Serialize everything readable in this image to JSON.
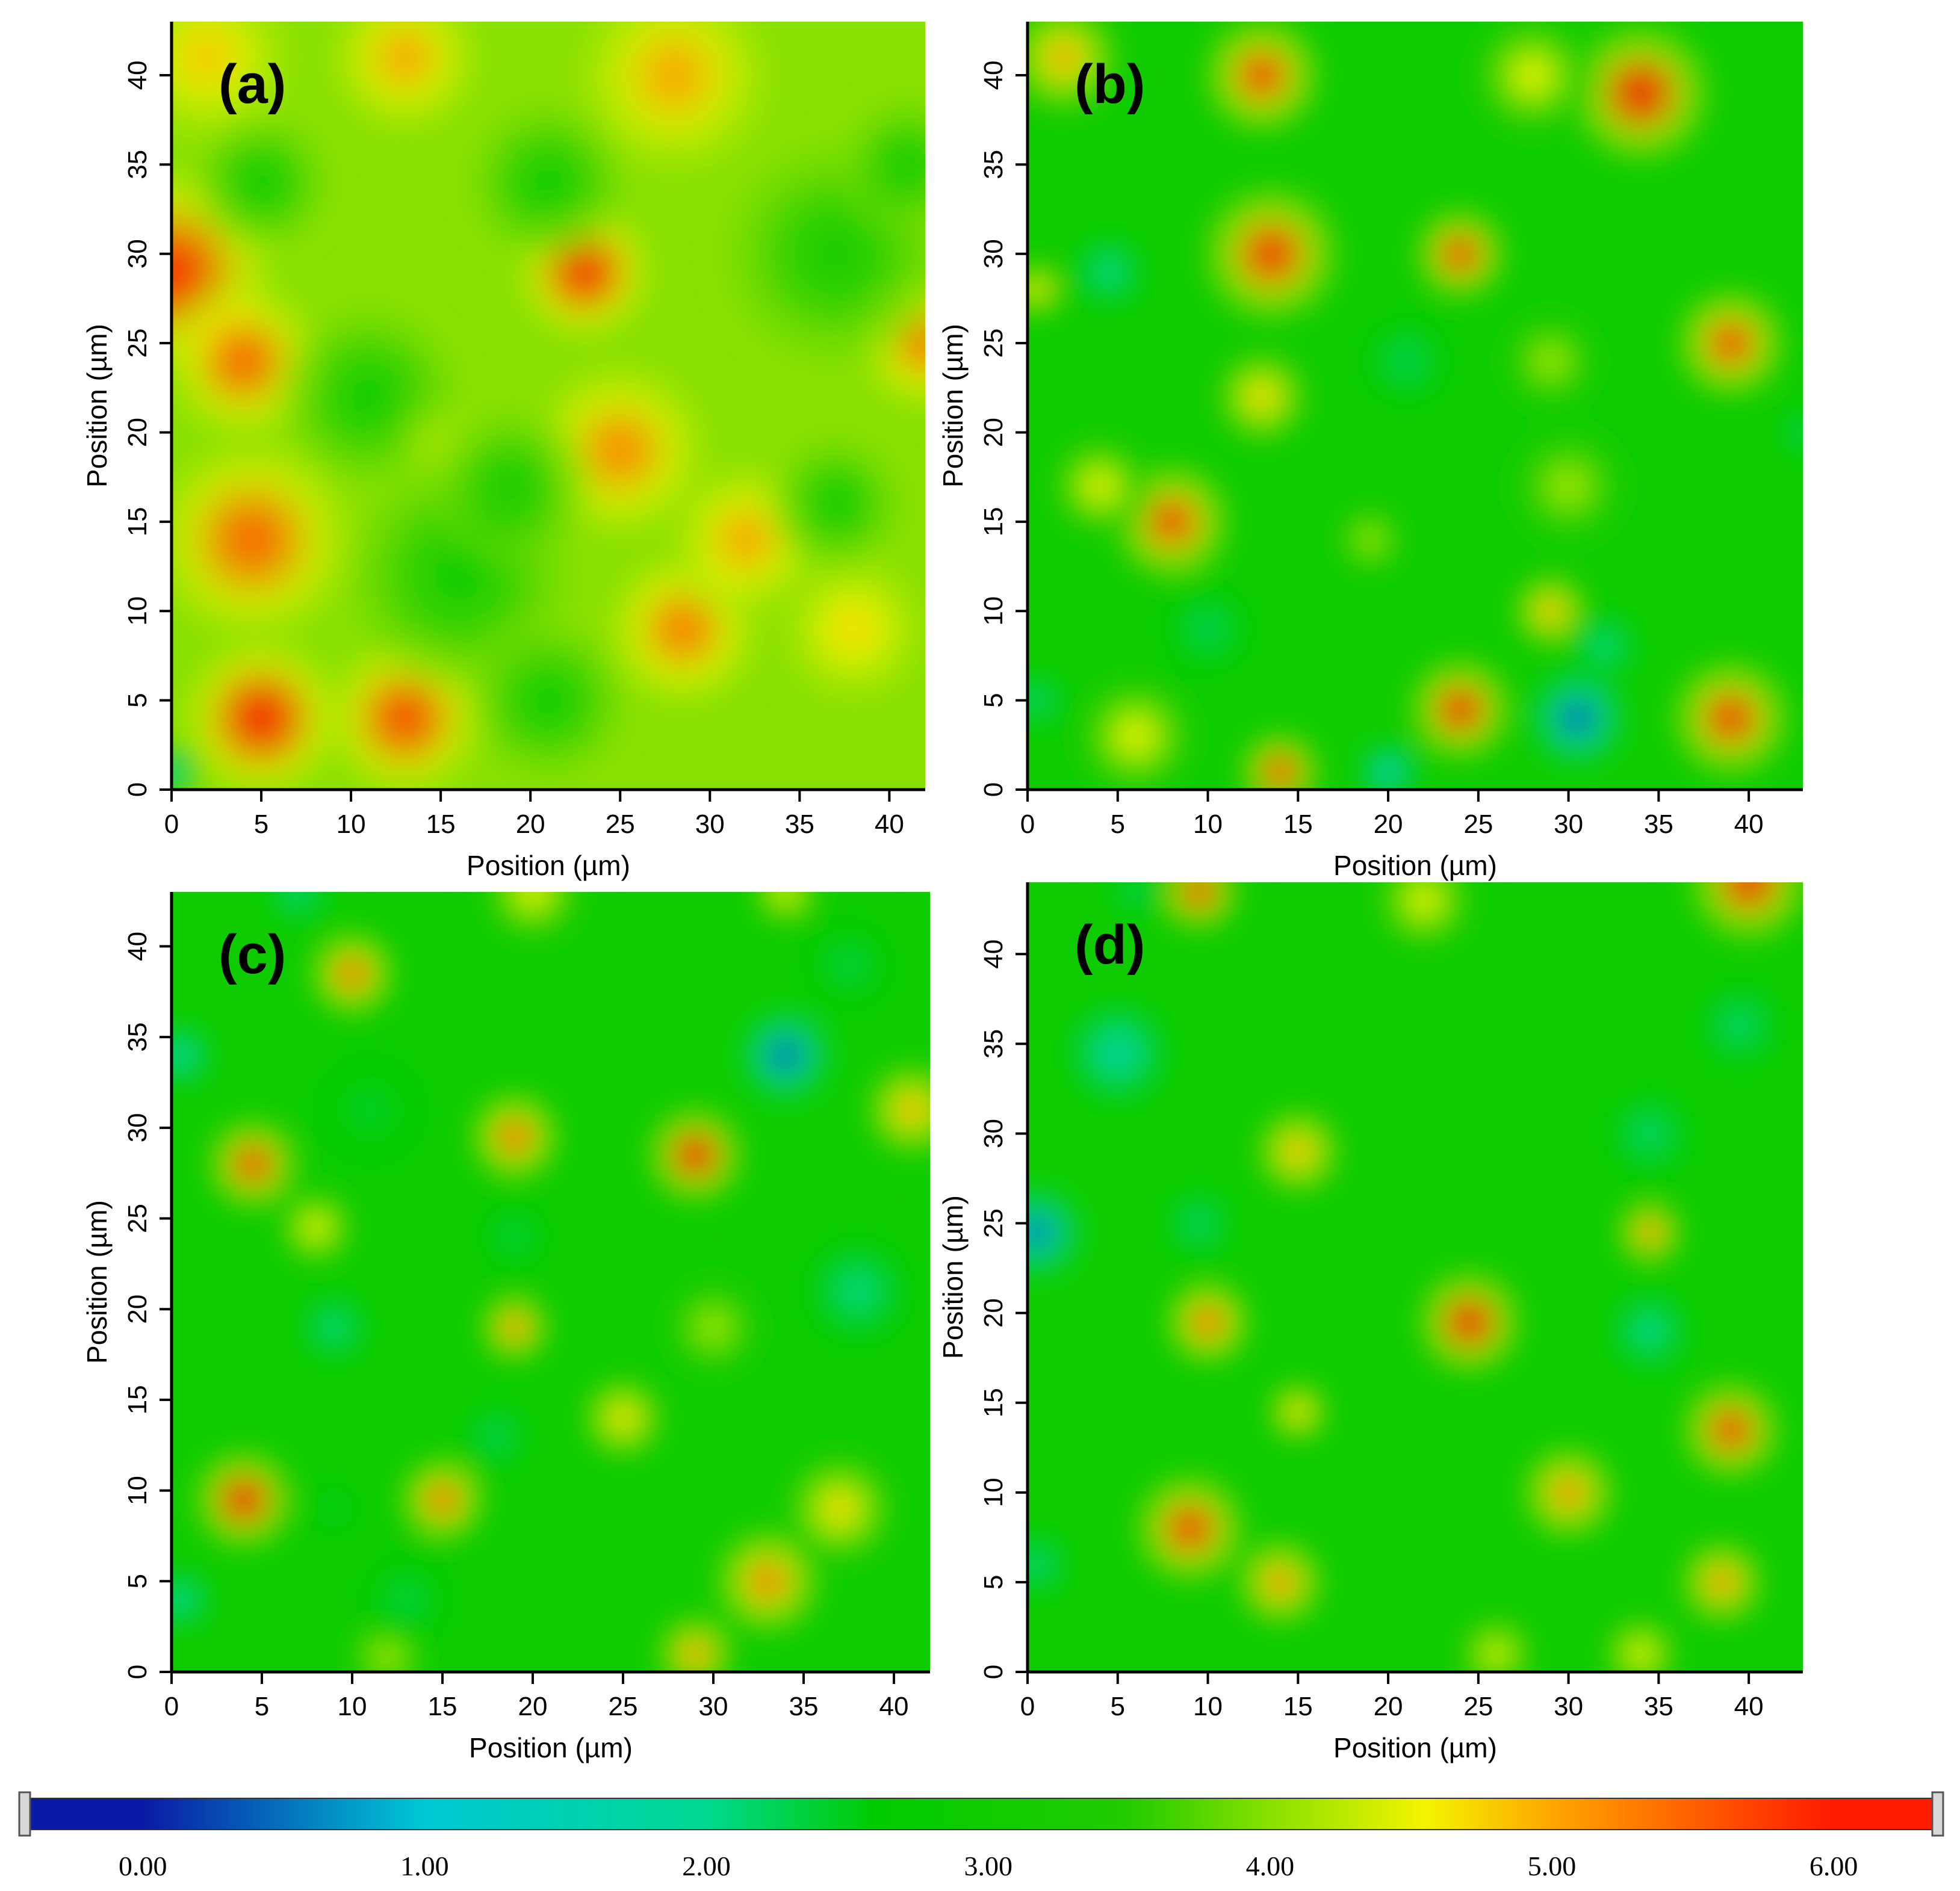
{
  "chart_data": [
    {
      "type": "heatmap",
      "panel_label": "(a)",
      "xlabel": "Position (µm)",
      "ylabel": "Position (µm)",
      "xlim": [
        0,
        42
      ],
      "ylim": [
        0,
        43
      ],
      "x_ticks": [
        0,
        5,
        10,
        15,
        20,
        25,
        30,
        35,
        40
      ],
      "y_ticks": [
        0,
        5,
        10,
        15,
        20,
        25,
        30,
        35,
        40
      ],
      "base_value": 4.0,
      "blobs": [
        {
          "x": 0,
          "y": 29,
          "value": 5.9,
          "size": 4.5
        },
        {
          "x": 4,
          "y": 24,
          "value": 5.5,
          "size": 3.5
        },
        {
          "x": 4.5,
          "y": 14,
          "value": 5.5,
          "size": 4.5
        },
        {
          "x": 5,
          "y": 4,
          "value": 6.0,
          "size": 3.5
        },
        {
          "x": 13,
          "y": 4,
          "value": 5.7,
          "size": 3.5
        },
        {
          "x": 23,
          "y": 29,
          "value": 5.9,
          "size": 3.0
        },
        {
          "x": 25,
          "y": 19,
          "value": 5.2,
          "size": 4.0
        },
        {
          "x": 28.5,
          "y": 9,
          "value": 5.3,
          "size": 3.5
        },
        {
          "x": 13,
          "y": 41,
          "value": 5.0,
          "size": 3.5
        },
        {
          "x": 28,
          "y": 40,
          "value": 5.0,
          "size": 4.5
        },
        {
          "x": 32,
          "y": 14,
          "value": 5.0,
          "size": 3.5
        },
        {
          "x": 38,
          "y": 9,
          "value": 4.7,
          "size": 3.5
        },
        {
          "x": 42,
          "y": 25,
          "value": 5.3,
          "size": 3.0
        },
        {
          "x": 14,
          "y": 20,
          "value": 4.6,
          "size": 2.0
        },
        {
          "x": 2,
          "y": 41,
          "value": 4.8,
          "size": 4.0
        },
        {
          "x": 5,
          "y": 34,
          "value": 3.0,
          "size": 3.0
        },
        {
          "x": 21,
          "y": 34,
          "value": 3.0,
          "size": 3.5
        },
        {
          "x": 37,
          "y": 30,
          "value": 3.1,
          "size": 5.0
        },
        {
          "x": 11,
          "y": 22,
          "value": 3.0,
          "size": 4.0
        },
        {
          "x": 16,
          "y": 12,
          "value": 3.0,
          "size": 5.0
        },
        {
          "x": 19,
          "y": 17,
          "value": 3.2,
          "size": 3.5
        },
        {
          "x": 21,
          "y": 5,
          "value": 3.0,
          "size": 3.5
        },
        {
          "x": 37,
          "y": 16,
          "value": 3.1,
          "size": 3.0
        },
        {
          "x": 41,
          "y": 35,
          "value": 3.2,
          "size": 3.0
        },
        {
          "x": 0,
          "y": 1,
          "value": 1.5,
          "size": 1.5
        }
      ]
    },
    {
      "type": "heatmap",
      "panel_label": "(b)",
      "xlabel": "Position (µm)",
      "ylabel": "Position (µm)",
      "xlim": [
        0,
        43
      ],
      "ylim": [
        0,
        43
      ],
      "x_ticks": [
        0,
        5,
        10,
        15,
        20,
        25,
        30,
        35,
        40
      ],
      "y_ticks": [
        0,
        5,
        10,
        15,
        20,
        25,
        30,
        35,
        40
      ],
      "base_value": 3.0,
      "blobs": [
        {
          "x": 13,
          "y": 40,
          "value": 5.7,
          "size": 3.0
        },
        {
          "x": 13.5,
          "y": 30,
          "value": 5.8,
          "size": 3.5
        },
        {
          "x": 13,
          "y": 22,
          "value": 4.8,
          "size": 2.5
        },
        {
          "x": 34,
          "y": 39,
          "value": 6.0,
          "size": 3.5
        },
        {
          "x": 28,
          "y": 40,
          "value": 4.6,
          "size": 3.0
        },
        {
          "x": 24,
          "y": 30,
          "value": 5.8,
          "size": 2.3
        },
        {
          "x": 39,
          "y": 25,
          "value": 5.7,
          "size": 2.8
        },
        {
          "x": 8,
          "y": 15,
          "value": 5.7,
          "size": 3.0
        },
        {
          "x": 4,
          "y": 17,
          "value": 4.6,
          "size": 2.5
        },
        {
          "x": 24,
          "y": 4.5,
          "value": 5.9,
          "size": 2.6
        },
        {
          "x": 29,
          "y": 10,
          "value": 5.0,
          "size": 2.0
        },
        {
          "x": 39,
          "y": 4,
          "value": 5.8,
          "size": 3.0
        },
        {
          "x": 14,
          "y": 1,
          "value": 5.8,
          "size": 2.0
        },
        {
          "x": 6,
          "y": 3,
          "value": 4.6,
          "size": 3.0
        },
        {
          "x": 2,
          "y": 41,
          "value": 5.0,
          "size": 3.0
        },
        {
          "x": 0.5,
          "y": 28,
          "value": 4.8,
          "size": 1.5
        },
        {
          "x": 19,
          "y": 14,
          "value": 4.2,
          "size": 1.8
        },
        {
          "x": 30,
          "y": 17,
          "value": 4.2,
          "size": 3.0
        },
        {
          "x": 29,
          "y": 24,
          "value": 4.2,
          "size": 2.5
        },
        {
          "x": 4.5,
          "y": 29,
          "value": 1.9,
          "size": 2.0
        },
        {
          "x": 21,
          "y": 24,
          "value": 2.2,
          "size": 2.5
        },
        {
          "x": 10,
          "y": 9,
          "value": 2.2,
          "size": 2.5
        },
        {
          "x": 30.5,
          "y": 4,
          "value": 0.3,
          "size": 2.3
        },
        {
          "x": 32,
          "y": 8,
          "value": 2.0,
          "size": 2.0
        },
        {
          "x": 20,
          "y": 1,
          "value": 1.2,
          "size": 1.5
        },
        {
          "x": 0.5,
          "y": 5,
          "value": 2.0,
          "size": 1.5
        },
        {
          "x": 43,
          "y": 20,
          "value": 2.2,
          "size": 1.5
        }
      ]
    },
    {
      "type": "heatmap",
      "panel_label": "(c)",
      "xlabel": "Position (µm)",
      "ylabel": "Position (µm)",
      "xlim": [
        0,
        42
      ],
      "ylim": [
        0,
        43
      ],
      "x_ticks": [
        0,
        5,
        10,
        15,
        20,
        25,
        30,
        35,
        40
      ],
      "y_ticks": [
        0,
        5,
        10,
        15,
        20,
        25,
        30,
        35,
        40
      ],
      "base_value": 3.0,
      "blobs": [
        {
          "x": 10,
          "y": 38.5,
          "value": 5.5,
          "size": 2.2
        },
        {
          "x": 4.5,
          "y": 28,
          "value": 5.8,
          "size": 2.3
        },
        {
          "x": 8,
          "y": 24.5,
          "value": 4.6,
          "size": 2.0
        },
        {
          "x": 19,
          "y": 29.5,
          "value": 5.5,
          "size": 2.3
        },
        {
          "x": 19,
          "y": 19,
          "value": 5.3,
          "size": 1.8
        },
        {
          "x": 29,
          "y": 28.5,
          "value": 6.0,
          "size": 2.4
        },
        {
          "x": 4,
          "y": 9.5,
          "value": 6.0,
          "size": 2.5
        },
        {
          "x": 15,
          "y": 9.5,
          "value": 5.5,
          "size": 2.2
        },
        {
          "x": 25,
          "y": 14,
          "value": 4.8,
          "size": 2.2
        },
        {
          "x": 33,
          "y": 5,
          "value": 5.3,
          "size": 2.8
        },
        {
          "x": 37,
          "y": 9,
          "value": 4.8,
          "size": 2.8
        },
        {
          "x": 41,
          "y": 31,
          "value": 5.0,
          "size": 2.5
        },
        {
          "x": 29,
          "y": 1,
          "value": 5.2,
          "size": 2.0
        },
        {
          "x": 12,
          "y": 1,
          "value": 4.4,
          "size": 2.0
        },
        {
          "x": 20,
          "y": 43,
          "value": 4.6,
          "size": 2.5
        },
        {
          "x": 34,
          "y": 43,
          "value": 4.6,
          "size": 1.8
        },
        {
          "x": 30,
          "y": 19,
          "value": 4.2,
          "size": 2.5
        },
        {
          "x": 34,
          "y": 34,
          "value": 0.3,
          "size": 2.2
        },
        {
          "x": 0.5,
          "y": 34,
          "value": 1.5,
          "size": 1.6
        },
        {
          "x": 0.5,
          "y": 4,
          "value": 1.7,
          "size": 1.6
        },
        {
          "x": 9,
          "y": 19,
          "value": 2.0,
          "size": 2.0
        },
        {
          "x": 18,
          "y": 13,
          "value": 2.2,
          "size": 2.0
        },
        {
          "x": 19,
          "y": 24,
          "value": 2.3,
          "size": 2.0
        },
        {
          "x": 11,
          "y": 31,
          "value": 2.4,
          "size": 3.0
        },
        {
          "x": 38,
          "y": 21,
          "value": 2.0,
          "size": 3.0
        },
        {
          "x": 37.5,
          "y": 39,
          "value": 2.3,
          "size": 2.5
        },
        {
          "x": 13,
          "y": 4,
          "value": 2.3,
          "size": 2.5
        },
        {
          "x": 9,
          "y": 9,
          "value": 2.4,
          "size": 1.5
        },
        {
          "x": 7,
          "y": 43,
          "value": 2.0,
          "size": 1.8
        }
      ]
    },
    {
      "type": "heatmap",
      "panel_label": "(d)",
      "xlabel": "Position (µm)",
      "ylabel": "Position (µm)",
      "xlim": [
        0,
        43
      ],
      "ylim": [
        0,
        44
      ],
      "x_ticks": [
        0,
        5,
        10,
        15,
        20,
        25,
        30,
        35,
        40
      ],
      "y_ticks": [
        0,
        5,
        10,
        15,
        20,
        25,
        30,
        35,
        40
      ],
      "base_value": 3.0,
      "blobs": [
        {
          "x": 9.5,
          "y": 43.5,
          "value": 5.8,
          "size": 2.0
        },
        {
          "x": 40,
          "y": 44,
          "value": 5.9,
          "size": 3.0
        },
        {
          "x": 22,
          "y": 43,
          "value": 4.6,
          "size": 2.5
        },
        {
          "x": 15,
          "y": 29,
          "value": 5.0,
          "size": 2.3
        },
        {
          "x": 10,
          "y": 19.5,
          "value": 5.5,
          "size": 2.2
        },
        {
          "x": 15,
          "y": 14.5,
          "value": 4.9,
          "size": 1.6
        },
        {
          "x": 24.5,
          "y": 19.5,
          "value": 6.0,
          "size": 2.6
        },
        {
          "x": 34.5,
          "y": 24.5,
          "value": 5.3,
          "size": 1.7
        },
        {
          "x": 39,
          "y": 13.5,
          "value": 5.8,
          "size": 2.5
        },
        {
          "x": 38.5,
          "y": 5,
          "value": 5.2,
          "size": 2.2
        },
        {
          "x": 30,
          "y": 10,
          "value": 5.2,
          "size": 2.5
        },
        {
          "x": 9,
          "y": 8,
          "value": 5.8,
          "size": 2.8
        },
        {
          "x": 14,
          "y": 5,
          "value": 5.2,
          "size": 2.3
        },
        {
          "x": 26,
          "y": 1,
          "value": 4.5,
          "size": 2.0
        },
        {
          "x": 34,
          "y": 1,
          "value": 4.6,
          "size": 2.0
        },
        {
          "x": 0.5,
          "y": 24.5,
          "value": 0.4,
          "size": 2.2
        },
        {
          "x": 5,
          "y": 34.5,
          "value": 1.6,
          "size": 2.8
        },
        {
          "x": 9.5,
          "y": 25,
          "value": 2.1,
          "size": 2.0
        },
        {
          "x": 34.5,
          "y": 30,
          "value": 2.1,
          "size": 2.5
        },
        {
          "x": 34.5,
          "y": 19,
          "value": 1.9,
          "size": 2.3
        },
        {
          "x": 39.5,
          "y": 36,
          "value": 2.1,
          "size": 2.5
        },
        {
          "x": 0.5,
          "y": 6,
          "value": 2.0,
          "size": 1.8
        },
        {
          "x": 6,
          "y": 43.5,
          "value": 2.2,
          "size": 1.6
        }
      ]
    }
  ],
  "colorbar": {
    "tick_labels": [
      "0.00",
      "1.00",
      "2.00",
      "3.00",
      "4.00",
      "5.00",
      "6.00"
    ],
    "min": -0.4,
    "max": 6.35,
    "stops": [
      {
        "value": 0.0,
        "color": "#0a1aa6"
      },
      {
        "value": 1.0,
        "color": "#00c8d4"
      },
      {
        "value": 2.0,
        "color": "#00d890"
      },
      {
        "value": 2.6,
        "color": "#00cc00"
      },
      {
        "value": 3.5,
        "color": "#22cc00"
      },
      {
        "value": 4.0,
        "color": "#88e000"
      },
      {
        "value": 4.55,
        "color": "#f4f400"
      },
      {
        "value": 5.0,
        "color": "#ffa600"
      },
      {
        "value": 6.0,
        "color": "#ff1a00"
      }
    ]
  }
}
